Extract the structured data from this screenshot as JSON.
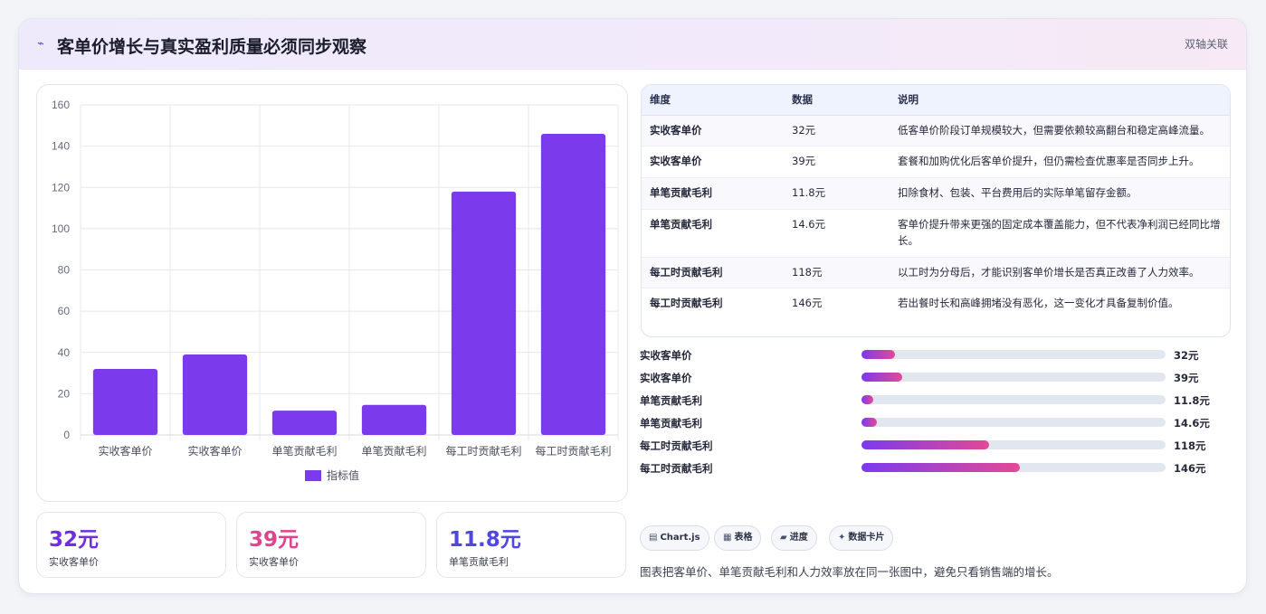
{
  "header": {
    "title": "客单价增长与真实盈利质量必须同步观察",
    "badge": "双轴关联",
    "icon": "trend-icon"
  },
  "chart_data": {
    "type": "bar",
    "categories": [
      "实收客单价",
      "实收客单价",
      "单笔贡献毛利",
      "单笔贡献毛利",
      "每工时贡献毛利",
      "每工时贡献毛利"
    ],
    "series": [
      {
        "name": "指标值",
        "values": [
          32,
          39,
          11.8,
          14.6,
          118,
          146
        ],
        "color": "#7c3aed"
      }
    ],
    "yticks": [
      0,
      20,
      40,
      60,
      80,
      100,
      120,
      140,
      160
    ],
    "ylim": [
      0,
      160
    ],
    "grid": true,
    "legend": "bottom"
  },
  "kpis": [
    {
      "value": "32元",
      "label": "实收客单价",
      "color": "#6d2fe0"
    },
    {
      "value": "39元",
      "label": "实收客单价",
      "color": "#e0438c"
    },
    {
      "value": "11.8元",
      "label": "单笔贡献毛利",
      "color": "#4f46e5"
    }
  ],
  "table": {
    "headers": [
      "维度",
      "数据",
      "说明"
    ],
    "rows": [
      [
        "实收客单价",
        "32元",
        "低客单价阶段订单规模较大，但需要依赖较高翻台和稳定高峰流量。"
      ],
      [
        "实收客单价",
        "39元",
        "套餐和加购优化后客单价提升，但仍需检查优惠率是否同步上升。"
      ],
      [
        "单笔贡献毛利",
        "11.8元",
        "扣除食材、包装、平台费用后的实际单笔留存金额。"
      ],
      [
        "单笔贡献毛利",
        "14.6元",
        "客单价提升带来更强的固定成本覆盖能力，但不代表净利润已经同比增长。"
      ],
      [
        "每工时贡献毛利",
        "118元",
        "以工时为分母后，才能识别客单价增长是否真正改善了人力效率。"
      ],
      [
        "每工时贡献毛利",
        "146元",
        "若出餐时长和高峰拥堵没有恶化，这一变化才具备复制价值。"
      ]
    ]
  },
  "progress": [
    {
      "label": "实收客单价",
      "value": "32元",
      "fraction": 0.11
    },
    {
      "label": "实收客单价",
      "value": "39元",
      "fraction": 0.135
    },
    {
      "label": "单笔贡献毛利",
      "value": "11.8元",
      "fraction": 0.04
    },
    {
      "label": "单笔贡献毛利",
      "value": "14.6元",
      "fraction": 0.05
    },
    {
      "label": "每工时贡献毛利",
      "value": "118元",
      "fraction": 0.42
    },
    {
      "label": "每工时贡献毛利",
      "value": "146元",
      "fraction": 0.52
    }
  ],
  "tags": [
    {
      "icon": "▤",
      "label": "Chart.js"
    },
    {
      "icon": "▦",
      "label": "表格"
    },
    {
      "icon": "▰",
      "label": "进度"
    },
    {
      "icon": "✦",
      "label": "数据卡片"
    }
  ],
  "footnote": "图表把客单价、单笔贡献毛利和人力效率放在同一张图中，避免只看销售端的增长。"
}
